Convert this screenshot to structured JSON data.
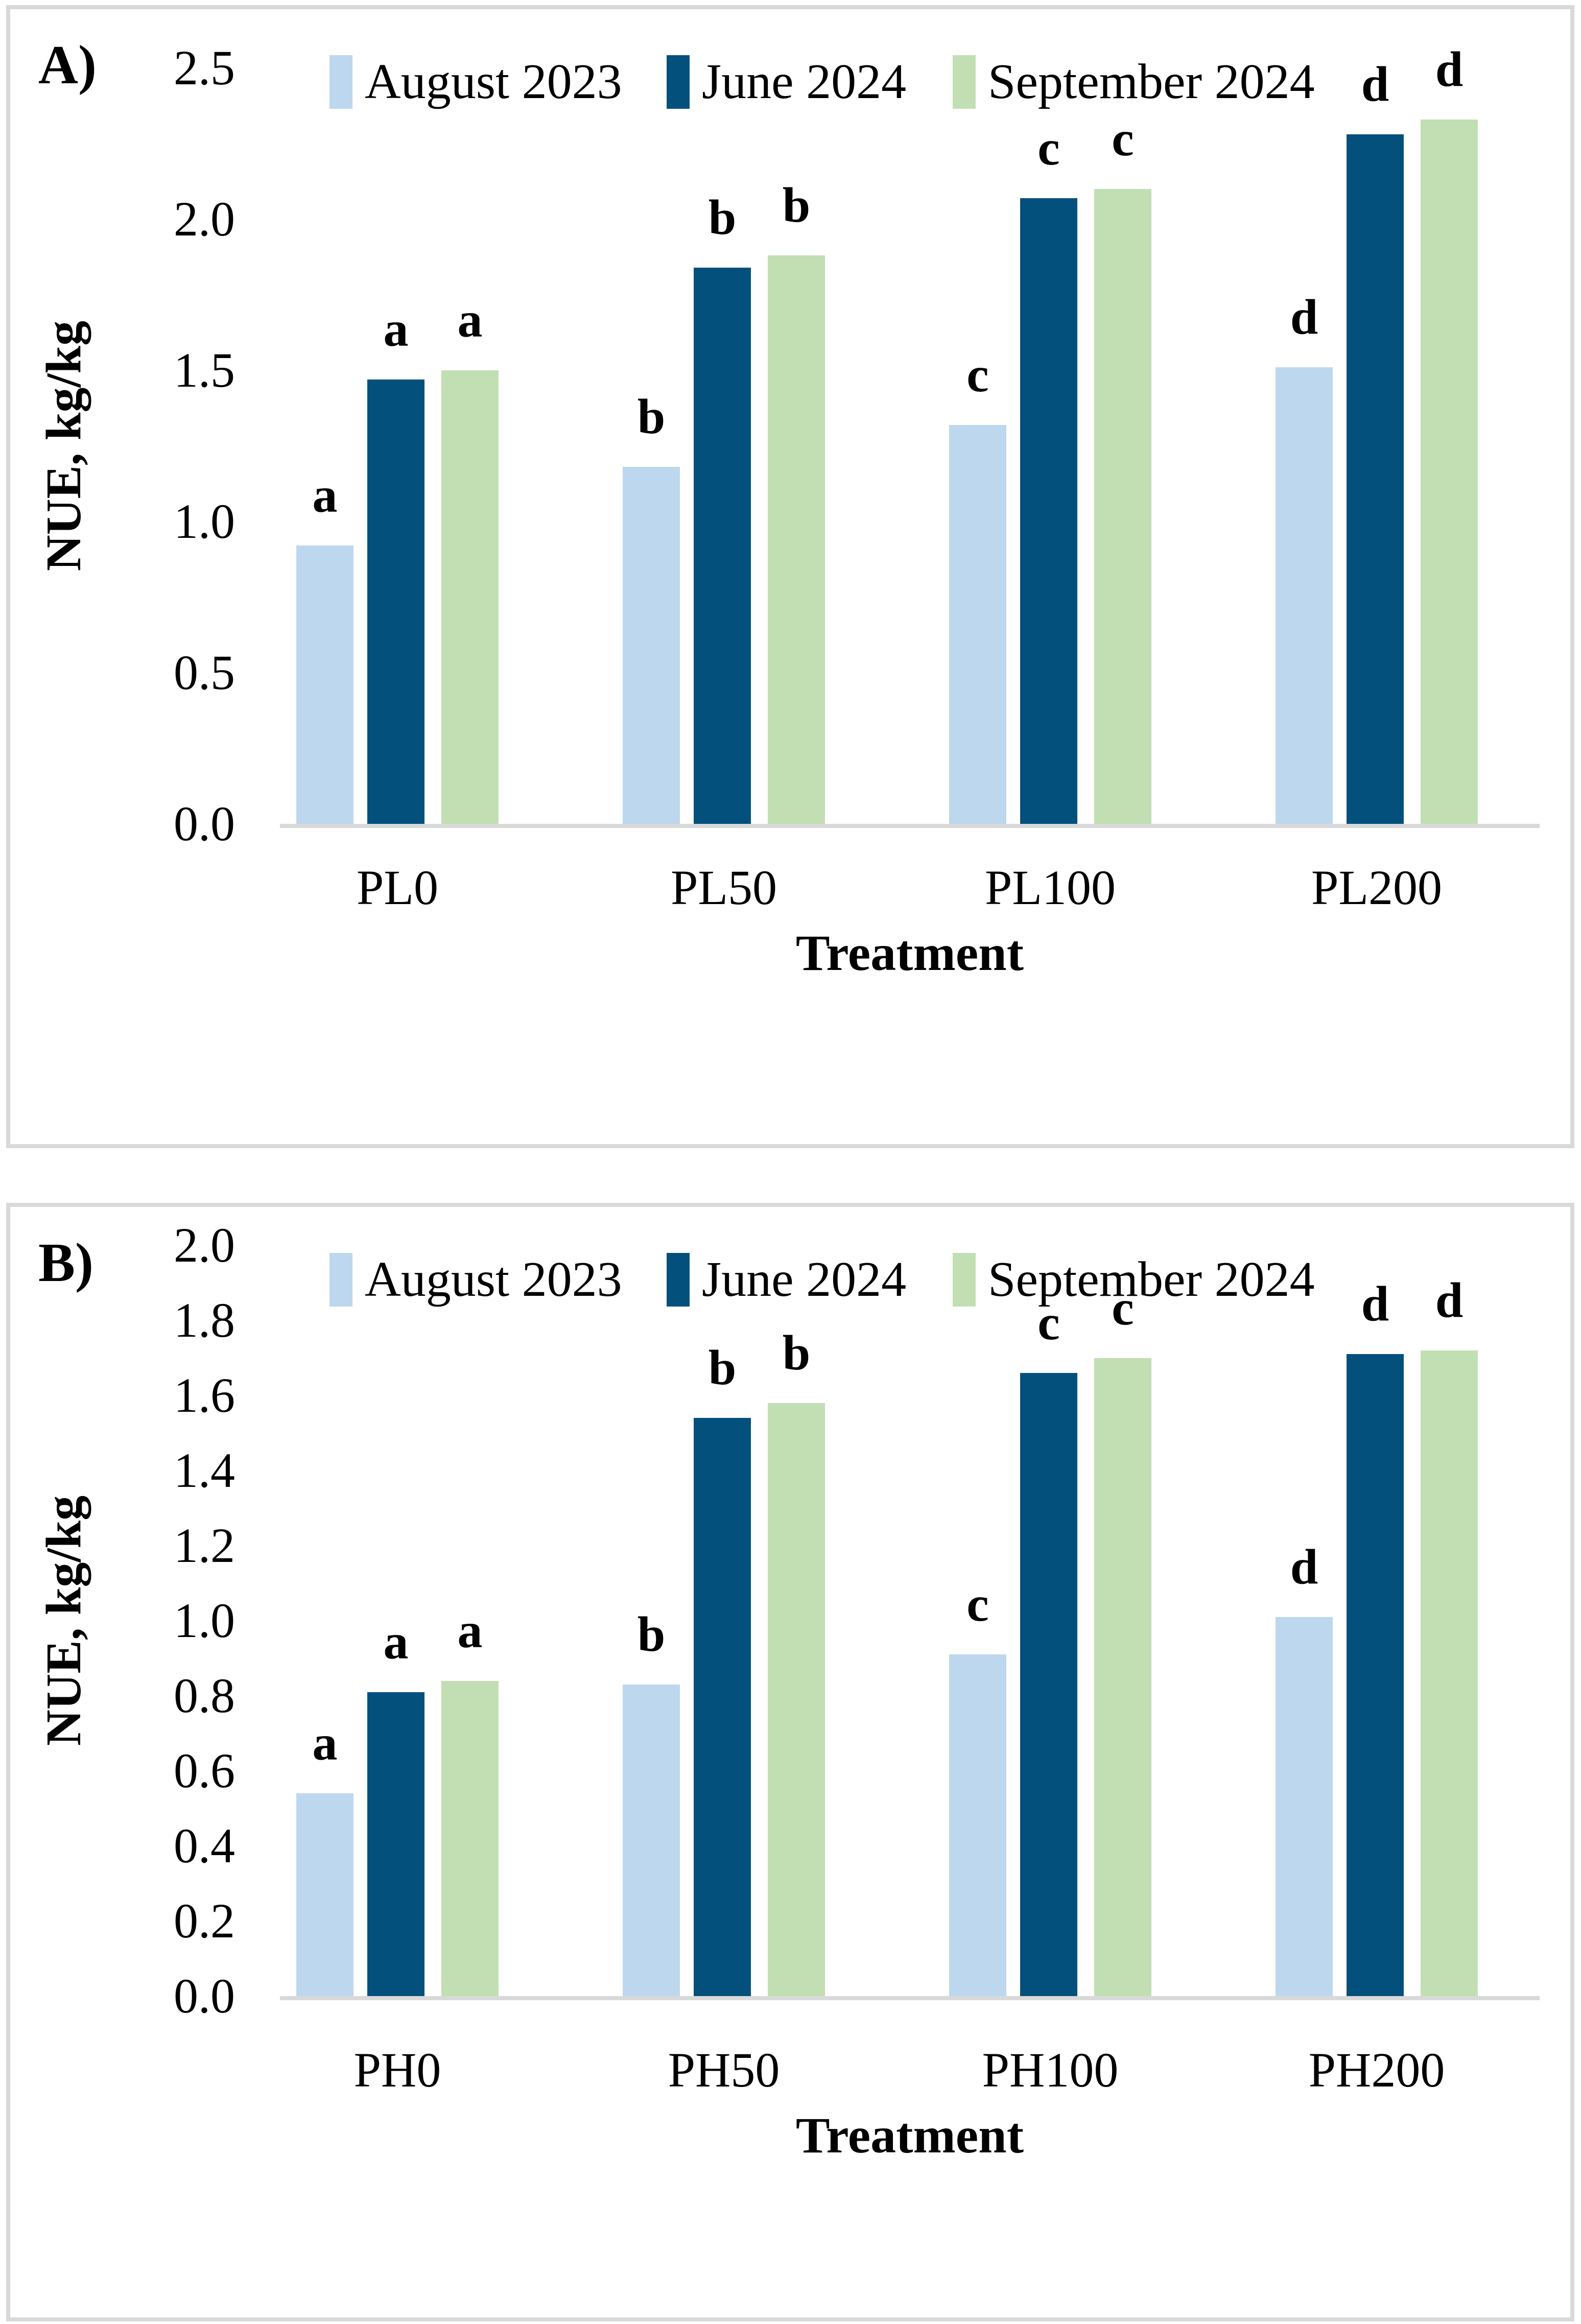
{
  "figure": {
    "background": "#FFFFFF",
    "panel_border_color": "#D9D9D9",
    "baseline_color": "#D9D9D9",
    "text_color": "#000000"
  },
  "chart_data": [
    {
      "type": "bar",
      "panel_label": "A)",
      "xlabel": "Treatment",
      "ylabel": "NUE, kg/kg",
      "categories": [
        "PL0",
        "PL50",
        "PL100",
        "PL200"
      ],
      "series": [
        {
          "name": "August 2023",
          "color": "#BDD7EE",
          "values": [
            0.92,
            1.18,
            1.32,
            1.51
          ]
        },
        {
          "name": "June 2024",
          "color": "#04507C",
          "values": [
            1.47,
            1.84,
            2.07,
            2.28
          ]
        },
        {
          "name": "September 2024",
          "color": "#C1DFB3",
          "values": [
            1.5,
            1.88,
            2.1,
            2.33
          ]
        }
      ],
      "sig_letters": [
        "a",
        "b",
        "c",
        "d"
      ],
      "ylim": [
        0,
        2.5
      ],
      "ytick_labels": [
        "0.0",
        "0.5",
        "1.0",
        "1.5",
        "2.0",
        "2.5"
      ],
      "legend_position": "top",
      "grid": false
    },
    {
      "type": "bar",
      "panel_label": "B)",
      "xlabel": "Treatment",
      "ylabel": "NUE, kg/kg",
      "categories": [
        "PH0",
        "PH50",
        "PH100",
        "PH200"
      ],
      "series": [
        {
          "name": "August 2023",
          "color": "#BDD7EE",
          "values": [
            0.54,
            0.83,
            0.91,
            1.01
          ]
        },
        {
          "name": "June 2024",
          "color": "#04507C",
          "values": [
            0.81,
            1.54,
            1.66,
            1.71
          ]
        },
        {
          "name": "September 2024",
          "color": "#C1DFB3",
          "values": [
            0.84,
            1.58,
            1.7,
            1.72
          ]
        }
      ],
      "sig_letters": [
        "a",
        "b",
        "c",
        "d"
      ],
      "ylim": [
        0,
        2.0
      ],
      "ytick_labels": [
        "0.0",
        "0.2",
        "0.4",
        "0.6",
        "0.8",
        "1.0",
        "1.2",
        "1.4",
        "1.6",
        "1.8",
        "2.0"
      ],
      "legend_position": "top",
      "grid": false
    }
  ]
}
